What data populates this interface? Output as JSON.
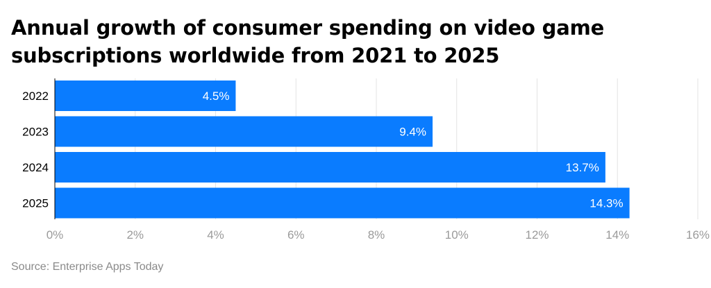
{
  "title": "Annual growth of consumer spending on video game subscriptions worldwide from 2021 to 2025",
  "source": "Source: Enterprise Apps Today",
  "colors": {
    "bar": "#0a7cff",
    "grid": "#e3e3e3",
    "axis": "#000000"
  },
  "chart_data": {
    "type": "bar",
    "orientation": "horizontal",
    "categories": [
      "2022",
      "2023",
      "2024",
      "2025"
    ],
    "values": [
      4.5,
      9.4,
      13.7,
      14.3
    ],
    "data_labels": [
      "4.5%",
      "9.4%",
      "13.7%",
      "14.3%"
    ],
    "title": "Annual growth of consumer spending on video game subscriptions worldwide from 2021 to 2025",
    "xlabel": "",
    "ylabel": "",
    "xlim": [
      0,
      16
    ],
    "x_ticks": [
      0,
      2,
      4,
      6,
      8,
      10,
      12,
      14,
      16
    ],
    "x_tick_labels": [
      "0%",
      "2%",
      "4%",
      "6%",
      "8%",
      "10%",
      "12%",
      "14%",
      "16%"
    ],
    "grid": true,
    "legend": "none"
  }
}
